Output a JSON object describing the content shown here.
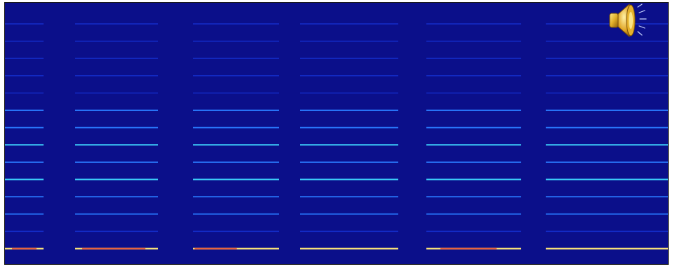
{
  "spectrogram": {
    "colors": {
      "background": "#0b0f8a",
      "low": "#1633d6",
      "mid": "#2a7bff",
      "high": "#3fd9ff",
      "peak": "#f6e07a",
      "hot": "#e23a2a"
    },
    "harmonic_rows": 14,
    "segments": 5
  },
  "speaker_control": {
    "icon": "speaker-icon",
    "color_body": "#d9a521",
    "color_highlight": "#ffe36b"
  }
}
